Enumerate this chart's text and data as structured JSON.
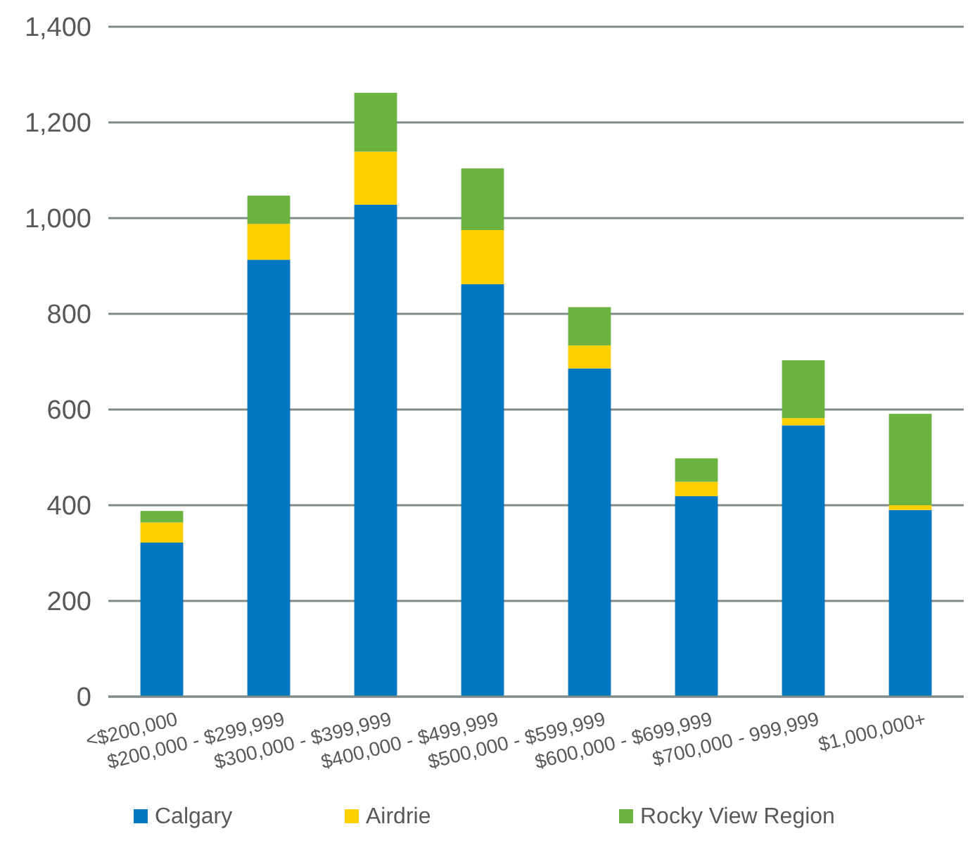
{
  "chart_data": {
    "type": "bar",
    "stacked": true,
    "categories": [
      "<$200,000",
      "$200,000 - $299,999",
      "$300,000 - $399,999",
      "$400,000 - $499,999",
      "$500,000 - $599,999",
      "$600,000 - $699,999",
      "$700,000 - 999,999",
      "$1,000,000+"
    ],
    "series": [
      {
        "name": "Calgary",
        "color": "#0077c0",
        "values": [
          322,
          913,
          1028,
          862,
          686,
          419,
          567,
          390
        ]
      },
      {
        "name": "Airdrie",
        "color": "#ffd000",
        "values": [
          42,
          75,
          111,
          113,
          48,
          30,
          15,
          10
        ]
      },
      {
        "name": "Rocky View Region",
        "color": "#6db33f",
        "values": [
          24,
          59,
          123,
          129,
          80,
          49,
          121,
          191
        ]
      }
    ],
    "ylim": [
      0,
      1400
    ],
    "yticks": [
      0,
      {
        "value": 200,
        "label": "200"
      },
      {
        "value": 400,
        "label": "400"
      },
      {
        "value": 600,
        "label": "600"
      },
      {
        "value": 800,
        "label": "800"
      },
      {
        "value": 1000,
        "label": "1,000"
      },
      {
        "value": 1200,
        "label": "1,200"
      },
      {
        "value": 1400,
        "label": "1,400"
      }
    ],
    "grid": "y",
    "legend": "bottom"
  }
}
